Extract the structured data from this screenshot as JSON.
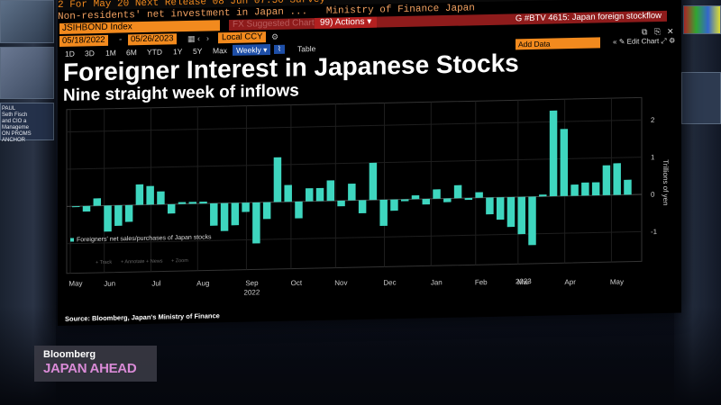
{
  "header": {
    "ticker_line": "      2    For May 20  Next Release 08 Jun 07:50    Survey --",
    "desc": "Non-residents' net investment in Japan ...",
    "source": "Ministry of Finance Japan",
    "ticker_name": "JSIHBOND Index",
    "dimmed": "FX Suggested Charts",
    "actions_label": "99) Actions ▾",
    "page_tag": "G #BTV 4615: Japan foreign stockflow"
  },
  "controls": {
    "start_date": "05/18/2022",
    "end_date": "05/26/2023",
    "currency": "Local CCY",
    "ranges": [
      "1D",
      "3D",
      "1M",
      "6M",
      "YTD",
      "1Y",
      "5Y",
      "Max"
    ],
    "frequency": "Weekly ▾",
    "table_label": "Table",
    "add_data": "Add Data",
    "edit_chart": "✎ Edit Chart"
  },
  "chart_data": {
    "type": "bar",
    "title": "Foreigner Interest in Japanese Stocks",
    "subtitle": "Nine straight week of inflows",
    "ylabel": "Trillions of yen",
    "ylim": [
      -1.8,
      2.6
    ],
    "yticks": [
      -1,
      0,
      1,
      2
    ],
    "ytick_labels": [
      "-1",
      "0",
      "1",
      "2"
    ],
    "x_month_labels": [
      "May",
      "Jun",
      "Jul",
      "Aug",
      "Sep",
      "Oct",
      "Nov",
      "Dec",
      "Jan",
      "Feb",
      "Mar",
      "Apr",
      "May"
    ],
    "x_year_labels": [
      "2022",
      "2023"
    ],
    "legend": "Foreigners' net sales/purchases of Japan stocks",
    "legend_position": "left",
    "tool_labels": [
      "Track",
      "Annotate",
      "News",
      "Zoom"
    ],
    "bar_color": "#3ed6bf",
    "series": [
      {
        "values": [
          -0.02,
          -0.15,
          0.2,
          -0.7,
          -0.55,
          -0.45,
          0.55,
          0.5,
          0.35,
          -0.25,
          0.05,
          0.05,
          0.05,
          -0.6,
          -0.75,
          -0.6,
          -0.25,
          -1.1,
          -0.45,
          1.2,
          0.45,
          -0.45,
          0.35,
          0.35,
          0.55,
          -0.15,
          0.45,
          -0.35,
          1.0,
          -0.7,
          -0.3,
          -0.05,
          0.1,
          -0.15,
          0.25,
          -0.1,
          0.35,
          -0.05,
          0.15,
          -0.45,
          -0.6,
          -0.8,
          -1.0,
          -1.3,
          0.05,
          2.3,
          1.8,
          0.3,
          0.35,
          0.35,
          0.8,
          0.85,
          0.4
        ]
      }
    ]
  },
  "source": "Source: Bloomberg, Japan's Ministry of Finance",
  "lower_third": {
    "brand": "Bloomberg",
    "show": "JAPAN AHEAD"
  },
  "sidebar_text": "PAUL\nSeth Fisch\nand CIO a\nManageme\nON PROMS\nANCHOR"
}
